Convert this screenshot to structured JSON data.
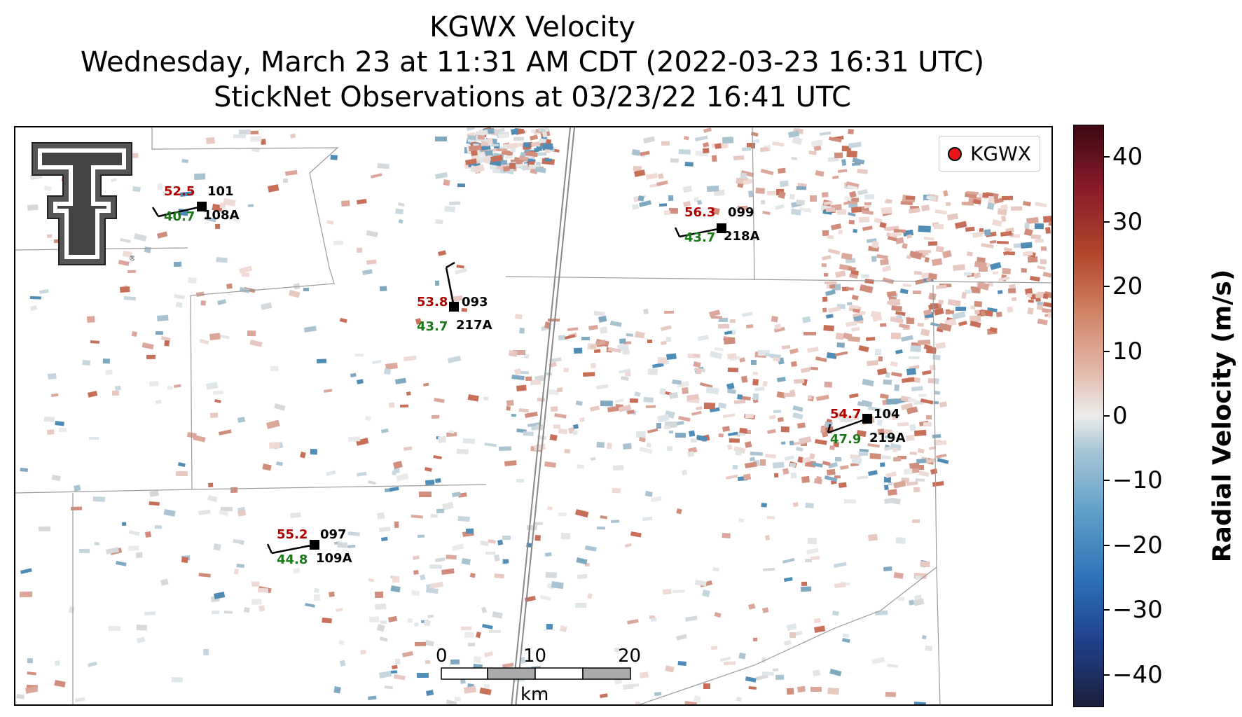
{
  "title": {
    "line1": "KGWX Velocity",
    "line2": "Wednesday, March 23 at 11:31 AM CDT (2022-03-23 16:31 UTC)",
    "line3": "StickNet Observations at 03/23/22 16:41 UTC"
  },
  "legend": {
    "label": "KGWX",
    "marker_color": "#e8141a"
  },
  "logo": {
    "name": "texas-tech-double-t-logo",
    "registered_mark": "®"
  },
  "stations": [
    {
      "id": "101",
      "probe": "108A",
      "speed": "52.5",
      "gust": "40.7"
    },
    {
      "id": "099",
      "probe": "218A",
      "speed": "56.3",
      "gust": "43.7"
    },
    {
      "id": "093",
      "probe": "217A",
      "speed": "53.8",
      "gust": "43.7"
    },
    {
      "id": "104",
      "probe": "219A",
      "speed": "54.7",
      "gust": "47.9"
    },
    {
      "id": "097",
      "probe": "109A",
      "speed": "55.2",
      "gust": "44.8"
    }
  ],
  "scalebar": {
    "ticks": [
      "0",
      "10",
      "20"
    ],
    "unit": "km"
  },
  "colorbar": {
    "label": "Radial Velocity (m/s)",
    "min": -45,
    "max": 45,
    "ticks": [
      "40",
      "30",
      "20",
      "10",
      "0",
      "−10",
      "−20",
      "−30",
      "−40"
    ]
  }
}
